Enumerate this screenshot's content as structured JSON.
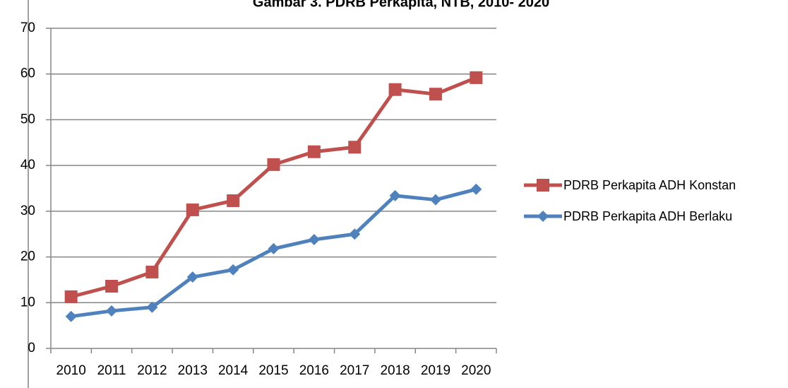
{
  "chart_data": {
    "type": "line",
    "title": "Gambar 3. PDRB Perkapita, NTB,  2010- 2020",
    "categories": [
      "2010",
      "2011",
      "2012",
      "2013",
      "2014",
      "2015",
      "2016",
      "2017",
      "2018",
      "2019",
      "2020"
    ],
    "series": [
      {
        "name": "PDRB Perkapita ADH Konstan",
        "color": "#c0504d",
        "marker": "square",
        "values": [
          11.3,
          13.6,
          16.7,
          30.3,
          32.3,
          40.2,
          43.0,
          44.0,
          56.6,
          55.6,
          59.2
        ]
      },
      {
        "name": "PDRB Perkapita ADH Berlaku",
        "color": "#4f81bd",
        "marker": "diamond",
        "values": [
          7.0,
          8.2,
          9.0,
          15.6,
          17.2,
          21.8,
          23.8,
          25.0,
          33.4,
          32.5,
          34.8
        ]
      }
    ],
    "ylim": [
      0,
      70
    ],
    "yticks": [
      0,
      10,
      20,
      30,
      40,
      50,
      60,
      70
    ],
    "grid": true,
    "legend": "right"
  }
}
